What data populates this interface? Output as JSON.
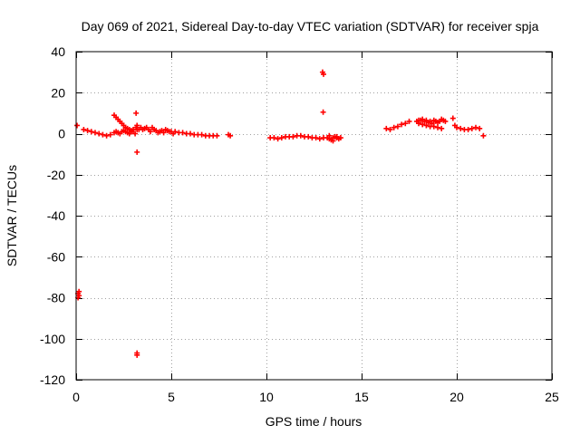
{
  "chart_data": {
    "type": "scatter",
    "title": "Day 069 of 2021, Sidereal Day-to-day VTEC variation (SDTVAR) for receiver spja",
    "xlabel": "GPS time / hours",
    "ylabel": "SDTVAR / TECUs",
    "xlim": [
      0,
      25
    ],
    "ylim": [
      -120,
      40
    ],
    "xticks": [
      0,
      5,
      10,
      15,
      20,
      25
    ],
    "xtick_labels": [
      "0",
      "5",
      "10",
      "15",
      "20",
      "25"
    ],
    "yticks": [
      40,
      20,
      0,
      -20,
      -40,
      -60,
      -80,
      -100,
      -120
    ],
    "ytick_labels": [
      "40",
      "20",
      "0",
      "-20",
      "-40",
      "-60",
      "-80",
      "-100",
      "-120"
    ],
    "grid": true,
    "colors": {
      "points": "#ff0000",
      "grid": "#a0a0a0",
      "axes": "#000000"
    },
    "series": [
      {
        "name": "SDTVAR",
        "marker": "plus",
        "x": [
          0.05,
          0.1,
          0.1,
          0.15,
          0.15,
          0.4,
          0.6,
          0.8,
          1.0,
          1.2,
          1.4,
          1.6,
          1.8,
          2.0,
          2.1,
          2.2,
          2.3,
          2.4,
          2.5,
          2.6,
          2.7,
          2.8,
          2.9,
          3.0,
          3.1,
          3.15,
          3.2,
          3.2,
          3.2,
          3.3,
          2.0,
          2.1,
          2.2,
          2.3,
          2.4,
          2.5,
          2.6,
          2.7,
          2.8,
          2.9,
          3.0,
          3.15,
          3.2,
          3.2,
          3.4,
          3.6,
          3.8,
          4.0,
          4.2,
          4.4,
          4.6,
          4.8,
          5.0,
          5.2,
          5.4,
          5.6,
          5.8,
          6.0,
          6.2,
          6.4,
          6.6,
          6.8,
          7.0,
          7.2,
          7.4,
          3.5,
          3.7,
          3.9,
          4.1,
          4.3,
          4.5,
          4.7,
          4.9,
          5.1,
          8.0,
          8.1,
          10.2,
          10.4,
          10.6,
          10.8,
          11.0,
          11.2,
          11.4,
          11.6,
          11.8,
          12.0,
          12.2,
          12.4,
          12.6,
          12.8,
          13.0,
          12.95,
          13.0,
          12.98,
          13.2,
          13.3,
          13.4,
          13.5,
          13.6,
          13.7,
          13.8,
          13.9,
          13.3,
          13.5,
          13.7,
          16.3,
          16.5,
          16.7,
          16.9,
          17.1,
          17.3,
          17.5,
          17.9,
          18.0,
          18.1,
          18.2,
          18.3,
          18.4,
          18.5,
          18.6,
          18.7,
          18.8,
          18.9,
          19.0,
          19.1,
          19.2,
          19.3,
          19.4,
          18.0,
          18.2,
          18.4,
          18.6,
          18.8,
          19.0,
          19.2,
          19.8,
          19.9,
          20.0,
          20.2,
          20.4,
          20.6,
          20.8,
          21.0,
          21.2,
          21.4
        ],
        "y": [
          4,
          -80,
          -78,
          -77,
          -79,
          2,
          1.5,
          1,
          0.5,
          0,
          -0.5,
          -1,
          -0.5,
          0.5,
          1,
          0.5,
          0,
          1,
          1.5,
          1,
          0.5,
          0,
          1,
          2,
          0,
          10,
          -9,
          -107,
          -108,
          2,
          9,
          8,
          7,
          6,
          5,
          4,
          3,
          2.5,
          2,
          1.5,
          1,
          3,
          2,
          4,
          3,
          2.5,
          2,
          3,
          1.5,
          1,
          0.5,
          1.5,
          1,
          1,
          0.5,
          0.5,
          0,
          0,
          -0.5,
          -0.5,
          -0.5,
          -1,
          -1,
          -1,
          -1,
          2,
          3,
          1,
          2,
          0.5,
          1.5,
          2,
          1,
          0,
          -0.5,
          -1,
          -2,
          -2,
          -2.5,
          -2,
          -1.5,
          -1.5,
          -1.5,
          -1,
          -1,
          -1.5,
          -1.5,
          -2,
          -2,
          -2.5,
          -2,
          30,
          29,
          10.5,
          -2,
          -2.5,
          -3,
          -2,
          -1.5,
          -2,
          -2.5,
          -2,
          -1,
          -3.5,
          -1.5,
          2.5,
          2,
          3,
          3.5,
          4.5,
          5,
          6,
          6,
          6.5,
          6.5,
          7,
          6,
          6.5,
          5.5,
          6,
          5,
          6.5,
          6,
          5.5,
          6,
          7,
          6.5,
          6,
          5,
          4.5,
          4,
          3.5,
          3.5,
          3,
          2.5,
          7.5,
          4,
          3,
          2.5,
          2,
          2,
          2.5,
          3,
          2.5,
          -1
        ]
      }
    ]
  }
}
